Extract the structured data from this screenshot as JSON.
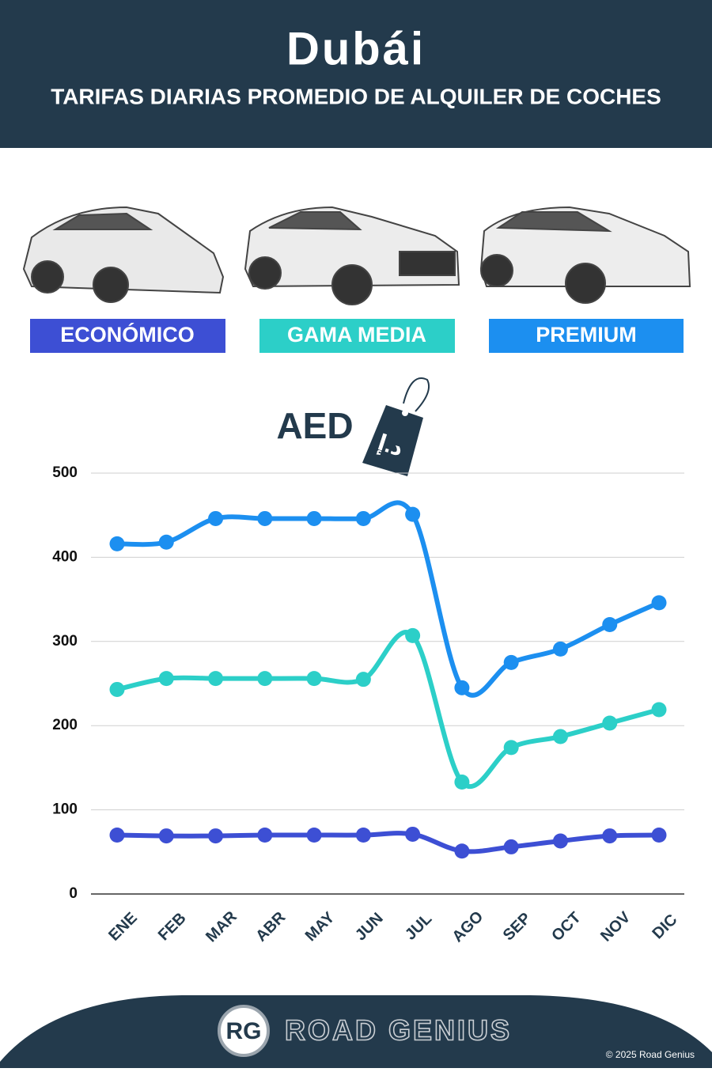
{
  "chart_data": {
    "type": "line",
    "title": "Dubái",
    "subtitle": "TARIFAS DIARIAS PROMEDIO DE ALQUILER DE COCHES",
    "unit_label": "AED",
    "currency_symbol": "د.إ",
    "categories": [
      "ENE",
      "FEB",
      "MAR",
      "ABR",
      "MAY",
      "JUN",
      "JUL",
      "AGO",
      "SEP",
      "OCT",
      "NOV",
      "DIC"
    ],
    "series": [
      {
        "name": "ECONÓMICO",
        "color": "#3d4fd4",
        "values": [
          70,
          69,
          69,
          70,
          70,
          70,
          71,
          51,
          56,
          63,
          69,
          70
        ]
      },
      {
        "name": "GAMA MEDIA",
        "color": "#2ccfc8",
        "values": [
          243,
          256,
          256,
          256,
          256,
          255,
          307,
          133,
          174,
          187,
          203,
          219
        ]
      },
      {
        "name": "PREMIUM",
        "color": "#1c8ff0",
        "values": [
          416,
          418,
          446,
          446,
          446,
          446,
          451,
          245,
          275,
          291,
          320,
          346
        ]
      }
    ],
    "ylim": [
      0,
      500
    ],
    "yticks": [
      0,
      100,
      200,
      300,
      400,
      500
    ],
    "grid": true
  },
  "footer": {
    "logo": "RG",
    "brand": "ROAD GENIUS",
    "copyright": "© 2025 Road Genius"
  }
}
